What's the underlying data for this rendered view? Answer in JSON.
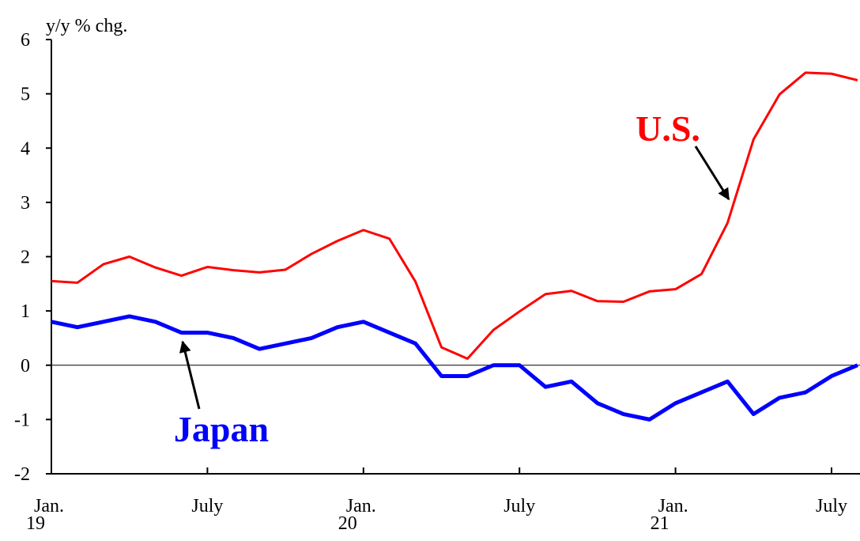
{
  "chart_data": {
    "type": "line",
    "y_axis_label": "y/y % chg.",
    "categories": [
      "Jan.\n19",
      null,
      null,
      null,
      null,
      null,
      "July",
      null,
      null,
      null,
      null,
      null,
      "Jan.\n20",
      null,
      null,
      null,
      null,
      null,
      "July",
      null,
      null,
      null,
      null,
      null,
      "Jan.\n21",
      null,
      null,
      null,
      null,
      null,
      "July",
      null
    ],
    "series": [
      {
        "name": "U.S.",
        "color": "#ff0000",
        "values": [
          1.55,
          1.52,
          1.86,
          2.0,
          1.8,
          1.65,
          1.81,
          1.75,
          1.71,
          1.76,
          2.05,
          2.29,
          2.49,
          2.33,
          1.54,
          0.33,
          0.12,
          0.65,
          0.99,
          1.31,
          1.37,
          1.18,
          1.17,
          1.36,
          1.4,
          1.68,
          2.62,
          4.16,
          4.99,
          5.39,
          5.37,
          5.25
        ]
      },
      {
        "name": "Japan",
        "color": "#0000ff",
        "values": [
          0.8,
          0.7,
          0.8,
          0.9,
          0.8,
          0.6,
          0.6,
          0.5,
          0.3,
          0.4,
          0.5,
          0.7,
          0.8,
          0.6,
          0.4,
          -0.2,
          -0.2,
          0.0,
          0.0,
          -0.4,
          -0.3,
          -0.7,
          -0.9,
          -1.0,
          -0.7,
          -0.5,
          -0.3,
          -0.9,
          -0.6,
          -0.5,
          -0.2,
          0.0
        ]
      }
    ],
    "ylim": [
      -2,
      6
    ],
    "yticks": [
      -2,
      -1,
      0,
      1,
      2,
      3,
      4,
      5,
      6
    ],
    "zero_line": true
  }
}
